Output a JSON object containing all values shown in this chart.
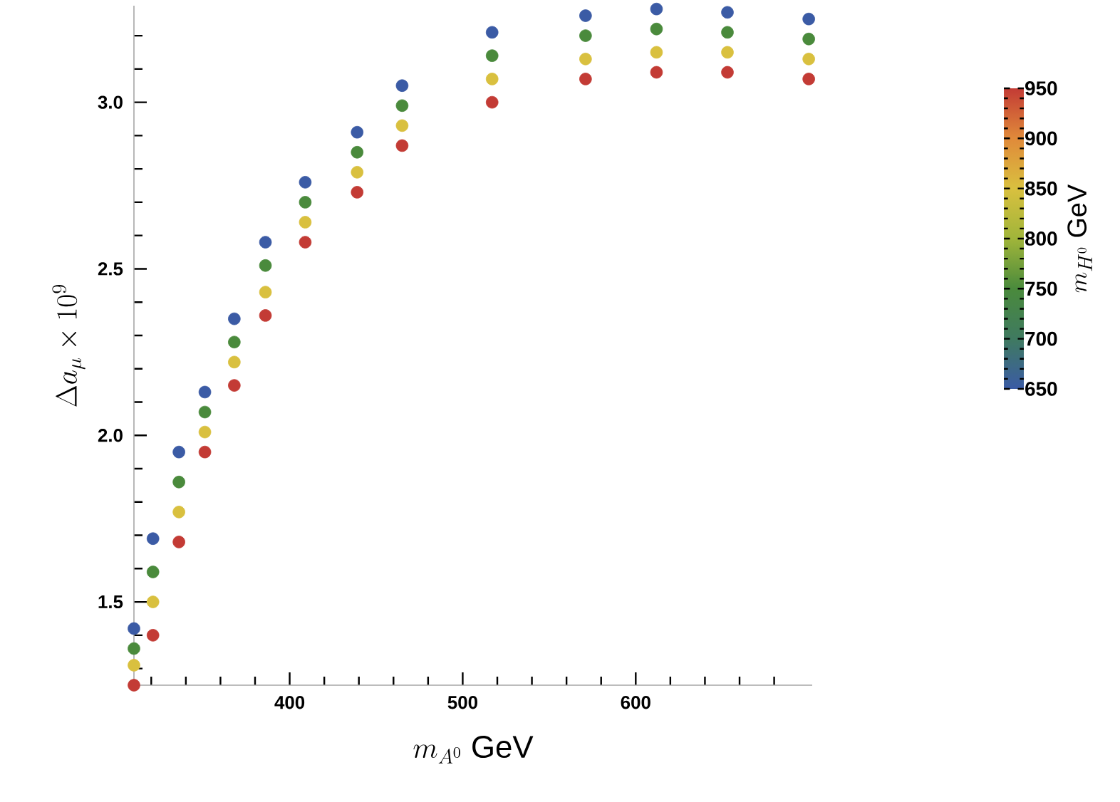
{
  "chart_data": {
    "type": "scatter",
    "xlabel": "m_{A^0}\\ \\mathrm{GeV}",
    "ylabel": "\\Delta a_\\mu \\times 10^9",
    "clabel": "m_{H^0}\\ \\mathrm{GeV}",
    "marker": "circle",
    "xlim": [
      310,
      702
    ],
    "ylim": [
      1.25,
      3.29
    ],
    "clim": [
      650,
      950
    ],
    "xticks": [
      {
        "value": 320,
        "label": null
      },
      {
        "value": 340,
        "label": null
      },
      {
        "value": 360,
        "label": null
      },
      {
        "value": 380,
        "label": null
      },
      400,
      {
        "value": 420,
        "label": null
      },
      {
        "value": 440,
        "label": null
      },
      {
        "value": 460,
        "label": null
      },
      {
        "value": 480,
        "label": null
      },
      500,
      {
        "value": 520,
        "label": null
      },
      {
        "value": 540,
        "label": null
      },
      {
        "value": 560,
        "label": null
      },
      {
        "value": 580,
        "label": null
      },
      600,
      {
        "value": 620,
        "label": null
      },
      {
        "value": 640,
        "label": null
      },
      {
        "value": 660,
        "label": null
      },
      {
        "value": 680,
        "label": null
      }
    ],
    "yticks": [
      {
        "value": 1.3,
        "label": null
      },
      {
        "value": 1.4,
        "label": null
      },
      {
        "value": 1.5,
        "label": "1.5"
      },
      {
        "value": 1.6,
        "label": null
      },
      {
        "value": 1.7,
        "label": null
      },
      {
        "value": 1.8,
        "label": null
      },
      {
        "value": 1.9,
        "label": null
      },
      {
        "value": 2.0,
        "label": "2.0"
      },
      {
        "value": 2.1,
        "label": null
      },
      {
        "value": 2.2,
        "label": null
      },
      {
        "value": 2.3,
        "label": null
      },
      {
        "value": 2.4,
        "label": null
      },
      {
        "value": 2.5,
        "label": "2.5"
      },
      {
        "value": 2.6,
        "label": null
      },
      {
        "value": 2.7,
        "label": null
      },
      {
        "value": 2.8,
        "label": null
      },
      {
        "value": 2.9,
        "label": null
      },
      {
        "value": 3.0,
        "label": "3.0"
      },
      {
        "value": 3.1,
        "label": null
      },
      {
        "value": 3.2,
        "label": null
      }
    ],
    "cticks": [
      650,
      700,
      750,
      800,
      850,
      900,
      950
    ],
    "x": [
      310,
      310,
      310,
      310,
      321,
      321,
      321,
      321,
      336,
      336,
      336,
      336,
      351,
      351,
      351,
      351,
      368,
      368,
      368,
      368,
      386,
      386,
      386,
      386,
      409,
      409,
      409,
      409,
      439,
      439,
      439,
      439,
      465,
      465,
      465,
      465,
      517,
      517,
      517,
      517,
      571,
      571,
      571,
      571,
      612,
      612,
      612,
      612,
      653,
      653,
      653,
      653,
      700,
      700,
      700,
      700
    ],
    "values": [
      1.42,
      1.36,
      1.31,
      1.25,
      1.69,
      1.59,
      1.5,
      1.4,
      1.95,
      1.86,
      1.77,
      1.68,
      2.13,
      2.07,
      2.01,
      1.95,
      2.35,
      2.28,
      2.22,
      2.15,
      2.58,
      2.51,
      2.43,
      2.36,
      2.76,
      2.7,
      2.64,
      2.58,
      2.91,
      2.85,
      2.79,
      2.73,
      3.05,
      2.99,
      2.93,
      2.87,
      3.21,
      3.14,
      3.07,
      3.0,
      3.26,
      3.2,
      3.13,
      3.07,
      3.28,
      3.22,
      3.15,
      3.09,
      3.27,
      3.21,
      3.15,
      3.09,
      3.25,
      3.19,
      3.13,
      3.07
    ],
    "cvalues": [
      650,
      750,
      850,
      950,
      650,
      750,
      850,
      950,
      650,
      750,
      850,
      950,
      650,
      750,
      850,
      950,
      650,
      750,
      850,
      950,
      650,
      750,
      850,
      950,
      650,
      750,
      850,
      950,
      650,
      750,
      850,
      950,
      650,
      750,
      850,
      950,
      650,
      750,
      850,
      950,
      650,
      750,
      850,
      950,
      650,
      750,
      850,
      950,
      650,
      750,
      850,
      950,
      650,
      750,
      850,
      950
    ]
  }
}
